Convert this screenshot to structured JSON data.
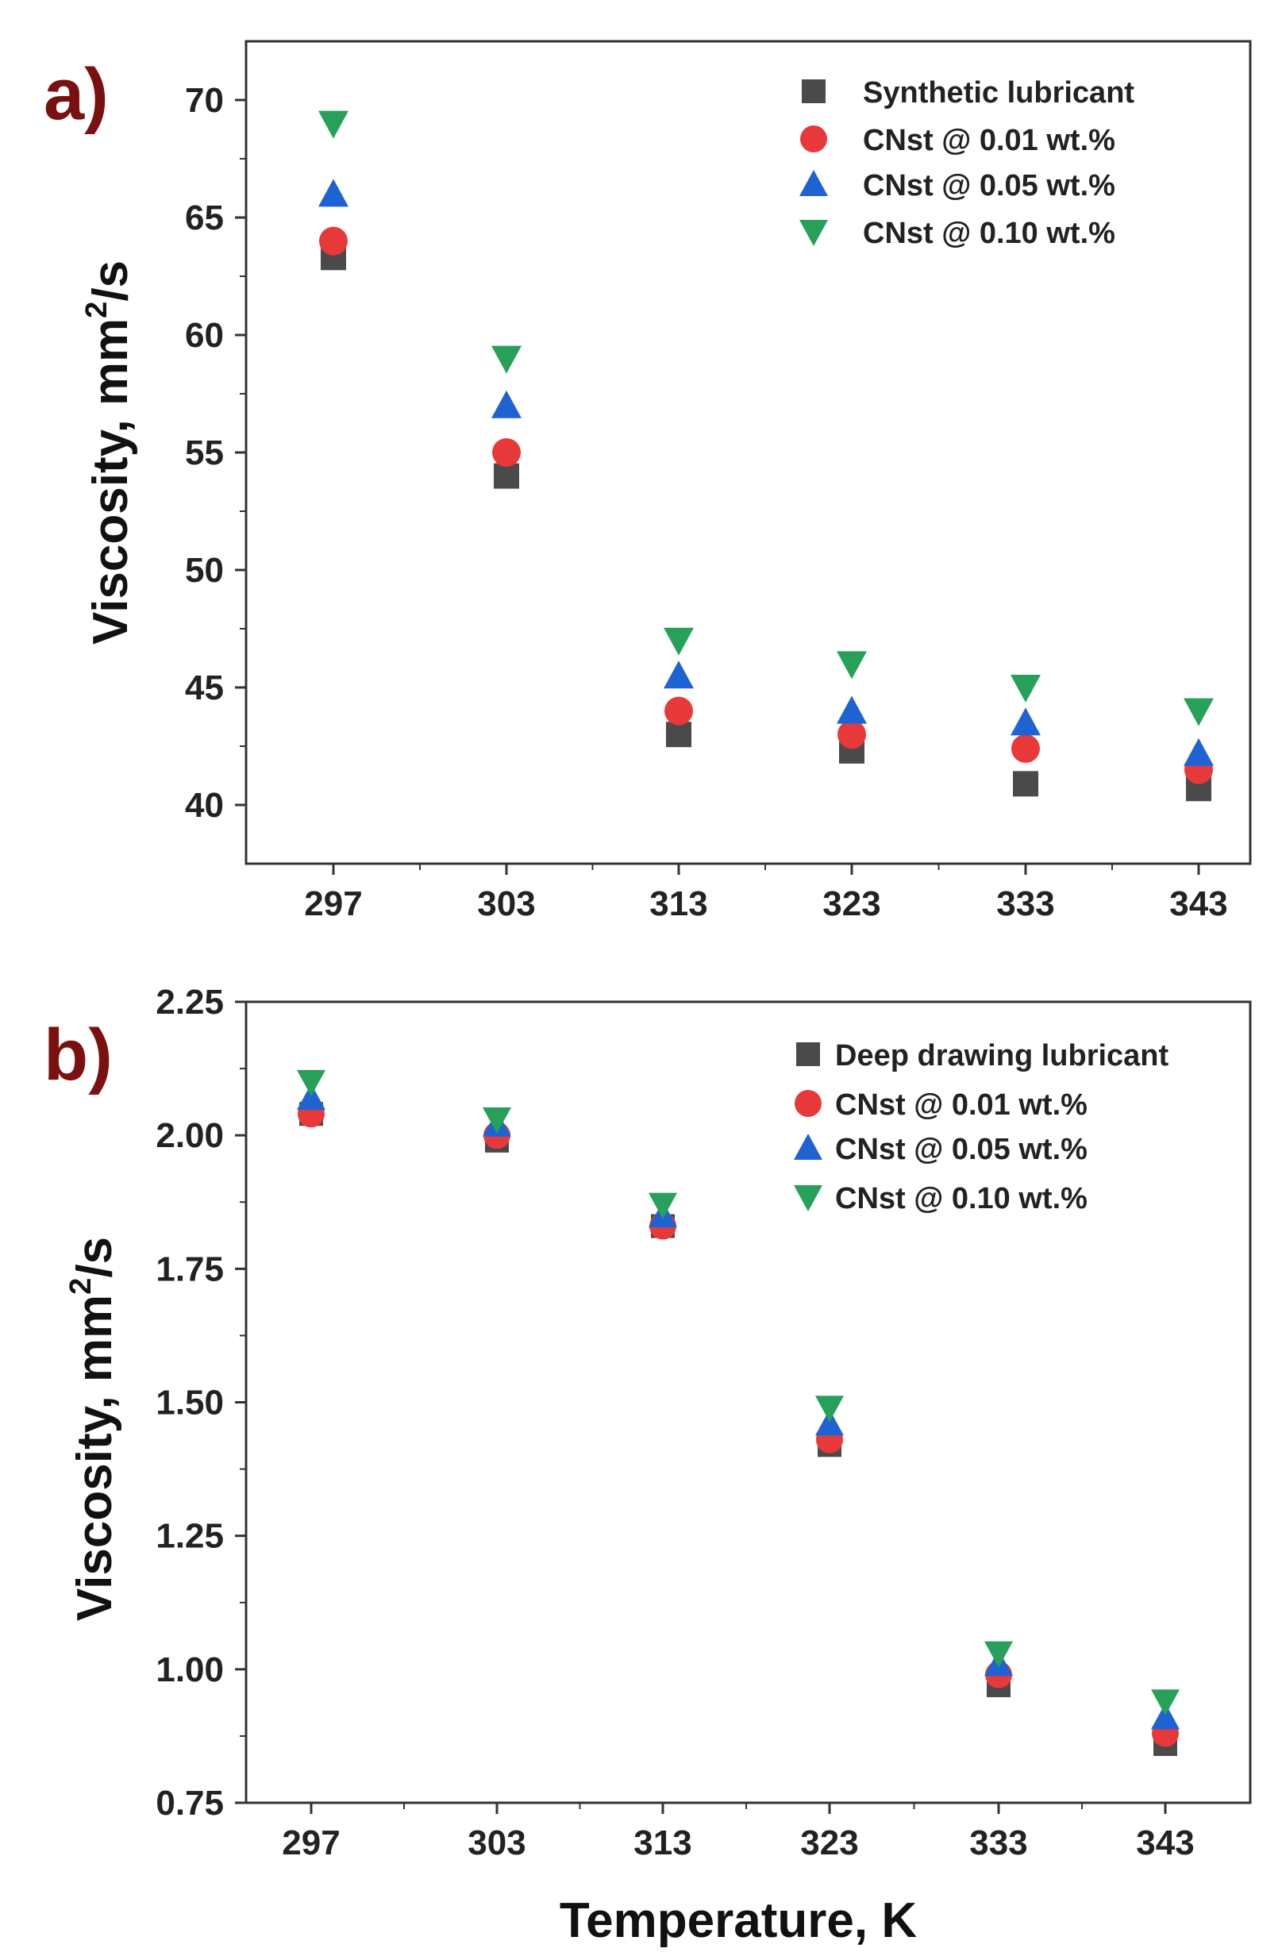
{
  "chart_data": [
    {
      "type": "scatter",
      "panel_label": "a)",
      "categories": [
        "297",
        "303",
        "313",
        "323",
        "333",
        "343"
      ],
      "ylabel": {
        "main": "Viscosity, mm",
        "sup": "2",
        "tail": "/s"
      },
      "xlabel": "",
      "ylim": [
        37.5,
        72.5
      ],
      "yticks": [
        40,
        45,
        50,
        55,
        60,
        65,
        70
      ],
      "ytick_labels": [
        "40",
        "45",
        "50",
        "55",
        "60",
        "65",
        "70"
      ],
      "legend_position": "top-right",
      "series": [
        {
          "name": "Synthetic lubricant",
          "marker": "square",
          "color": "#4a4a4a",
          "values": [
            63.3,
            54.0,
            43.0,
            42.3,
            40.9,
            40.7
          ]
        },
        {
          "name": "CNst @ 0.01 wt.%",
          "marker": "circle",
          "color": "#e8393a",
          "values": [
            64.0,
            55.0,
            44.0,
            43.0,
            42.4,
            41.5
          ]
        },
        {
          "name": "CNst @ 0.05 wt.%",
          "marker": "triangle-up",
          "color": "#1f63d3",
          "values": [
            66.0,
            57.0,
            45.5,
            44.0,
            43.5,
            42.2
          ]
        },
        {
          "name": "CNst @ 0.10 wt.%",
          "marker": "triangle-down",
          "color": "#27a05a",
          "values": [
            69.0,
            59.0,
            47.0,
            46.0,
            45.0,
            44.0
          ]
        }
      ]
    },
    {
      "type": "scatter",
      "panel_label": "b)",
      "categories": [
        "297",
        "303",
        "313",
        "323",
        "333",
        "343"
      ],
      "ylabel": {
        "main": "Viscosity, mm",
        "sup": "2",
        "tail": "/s"
      },
      "xlabel": "Temperature, K",
      "ylim": [
        0.75,
        2.25
      ],
      "yticks": [
        0.75,
        1.0,
        1.25,
        1.5,
        1.75,
        2.0,
        2.25
      ],
      "ytick_labels": [
        "0.75",
        "1.00",
        "1.25",
        "1.50",
        "1.75",
        "2.00",
        "2.25"
      ],
      "legend_position": "top-right",
      "series": [
        {
          "name": "Deep drawing lubricant",
          "marker": "square",
          "color": "#4a4a4a",
          "values": [
            2.04,
            1.99,
            1.83,
            1.42,
            0.97,
            0.86
          ]
        },
        {
          "name": "CNst @ 0.01 wt.%",
          "marker": "circle",
          "color": "#e8393a",
          "values": [
            2.04,
            2.0,
            1.83,
            1.43,
            0.99,
            0.88
          ]
        },
        {
          "name": "CNst @ 0.05 wt.%",
          "marker": "triangle-up",
          "color": "#1f63d3",
          "values": [
            2.07,
            2.02,
            1.85,
            1.46,
            1.01,
            0.91
          ]
        },
        {
          "name": "CNst @ 0.10 wt.%",
          "marker": "triangle-down",
          "color": "#27a05a",
          "values": [
            2.1,
            2.03,
            1.87,
            1.49,
            1.03,
            0.94
          ]
        }
      ]
    }
  ]
}
